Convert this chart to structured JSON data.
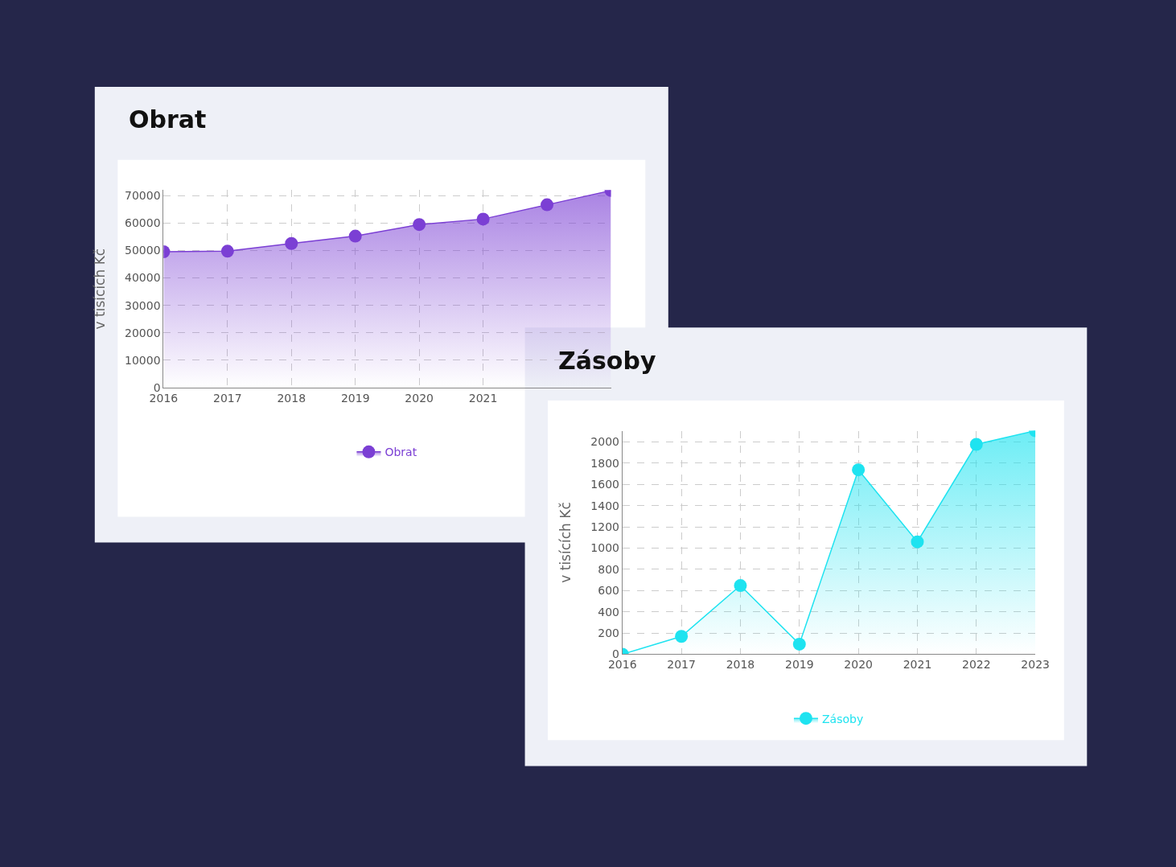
{
  "chart_data": [
    {
      "type": "area",
      "title": "Obrat",
      "ylabel": "v tisících Kč",
      "categories": [
        "2016",
        "2017",
        "2018",
        "2019",
        "2020",
        "2021",
        null,
        null
      ],
      "series": [
        {
          "name": "Obrat",
          "color": "#7b3fd4",
          "values": [
            49500,
            49700,
            52500,
            55200,
            59400,
            61400,
            66600,
            71800
          ]
        }
      ],
      "ylim": [
        0,
        72000
      ],
      "yticks": [
        0,
        10000,
        20000,
        30000,
        40000,
        50000,
        60000,
        70000
      ],
      "grid": true,
      "legend": "bottom",
      "marker": "circle",
      "line_style": "solid"
    },
    {
      "type": "area",
      "title": "Zásoby",
      "ylabel": "v tisících Kč",
      "categories": [
        "2016",
        "2017",
        "2018",
        "2019",
        "2020",
        "2021",
        "2022",
        "2023"
      ],
      "series": [
        {
          "name": "Zásoby",
          "color": "#1ee3f0",
          "values": [
            0,
            168,
            647,
            95,
            1737,
            1059,
            1977,
            2106
          ]
        }
      ],
      "ylim": [
        0,
        2106
      ],
      "yticks": [
        0,
        200,
        400,
        600,
        800,
        1000,
        1200,
        1400,
        1600,
        1800,
        2000
      ],
      "grid": true,
      "legend": "bottom",
      "marker": "circle",
      "line_style": "solid"
    }
  ]
}
